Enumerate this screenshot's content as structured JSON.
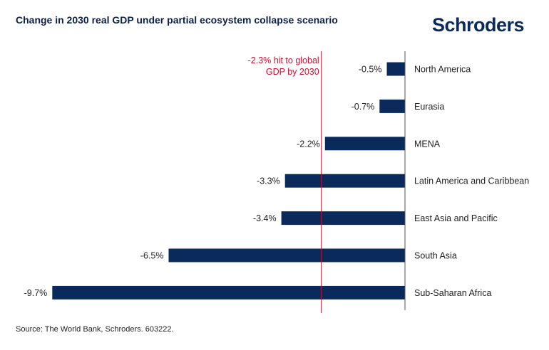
{
  "title": "Change in 2030 real GDP under partial ecosystem collapse scenario",
  "brand": {
    "logo_text": "Schroders"
  },
  "source": "Source: The World Bank, Schroders. 603222.",
  "colors": {
    "bar": "#0b2a5c",
    "reference": "#c8102e",
    "axis": "#555555",
    "text": "#222222"
  },
  "chart_data": {
    "type": "bar",
    "orientation": "horizontal",
    "categories": [
      "North America",
      "Eurasia",
      "MENA",
      "Latin America and Caribbean",
      "East Asia and Pacific",
      "South Asia",
      "Sub-Saharan Africa"
    ],
    "values": [
      -0.5,
      -0.7,
      -2.2,
      -3.3,
      -3.4,
      -6.5,
      -9.7
    ],
    "value_labels": [
      "-0.5%",
      "-0.7%",
      "-2.2%",
      "-3.3%",
      "-3.4%",
      "-6.5%",
      "-9.7%"
    ],
    "title": "Change in 2030 real GDP under partial ecosystem collapse scenario",
    "xlabel": "",
    "ylabel": "",
    "xlim": [
      -10,
      0
    ],
    "reference_line": {
      "value": -2.3,
      "label_lines": [
        "-2.3% hit to global",
        "GDP by 2030"
      ]
    }
  }
}
